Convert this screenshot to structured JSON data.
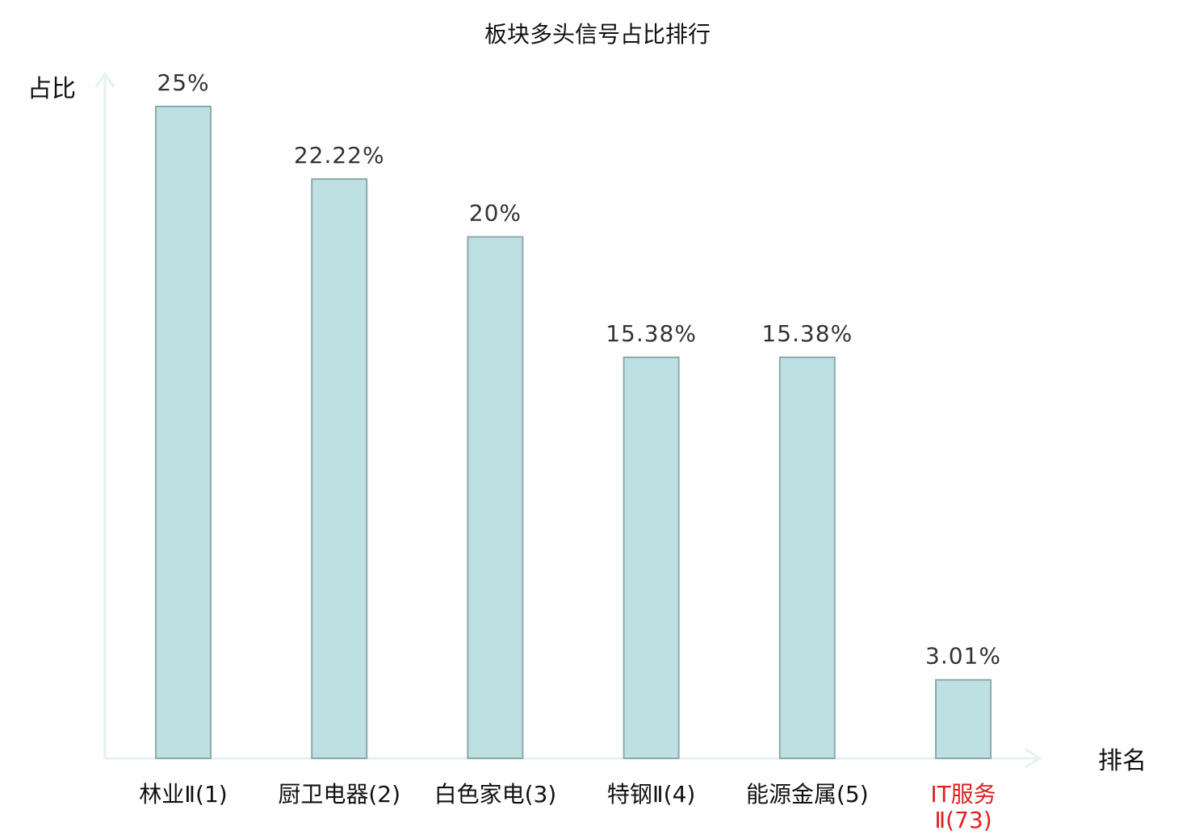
{
  "chart_data": {
    "type": "bar",
    "title": "板块多头信号占比排行",
    "ylabel": "占比",
    "xlabel": "排名",
    "ylim": [
      0,
      26.3
    ],
    "grid": false,
    "categories": [
      "林业Ⅱ(1)",
      "厨卫电器(2)",
      "白色家电(3)",
      "特钢Ⅱ(4)",
      "能源金属(5)",
      "IT服务Ⅱ(73)"
    ],
    "values": [
      25,
      22.22,
      20,
      15.38,
      15.38,
      3.01
    ],
    "value_labels": [
      "25%",
      "22.22%",
      "20%",
      "15.38%",
      "15.38%",
      "3.01%"
    ],
    "highlight_category": "IT服务Ⅱ(73)",
    "colors": {
      "bar_fill": "#bde0e3",
      "bar_stroke": "#8fa9ab",
      "axis": "#e3f3f2",
      "highlight_text": "#e02020",
      "text": "#111111",
      "value_text": "#333333"
    }
  }
}
